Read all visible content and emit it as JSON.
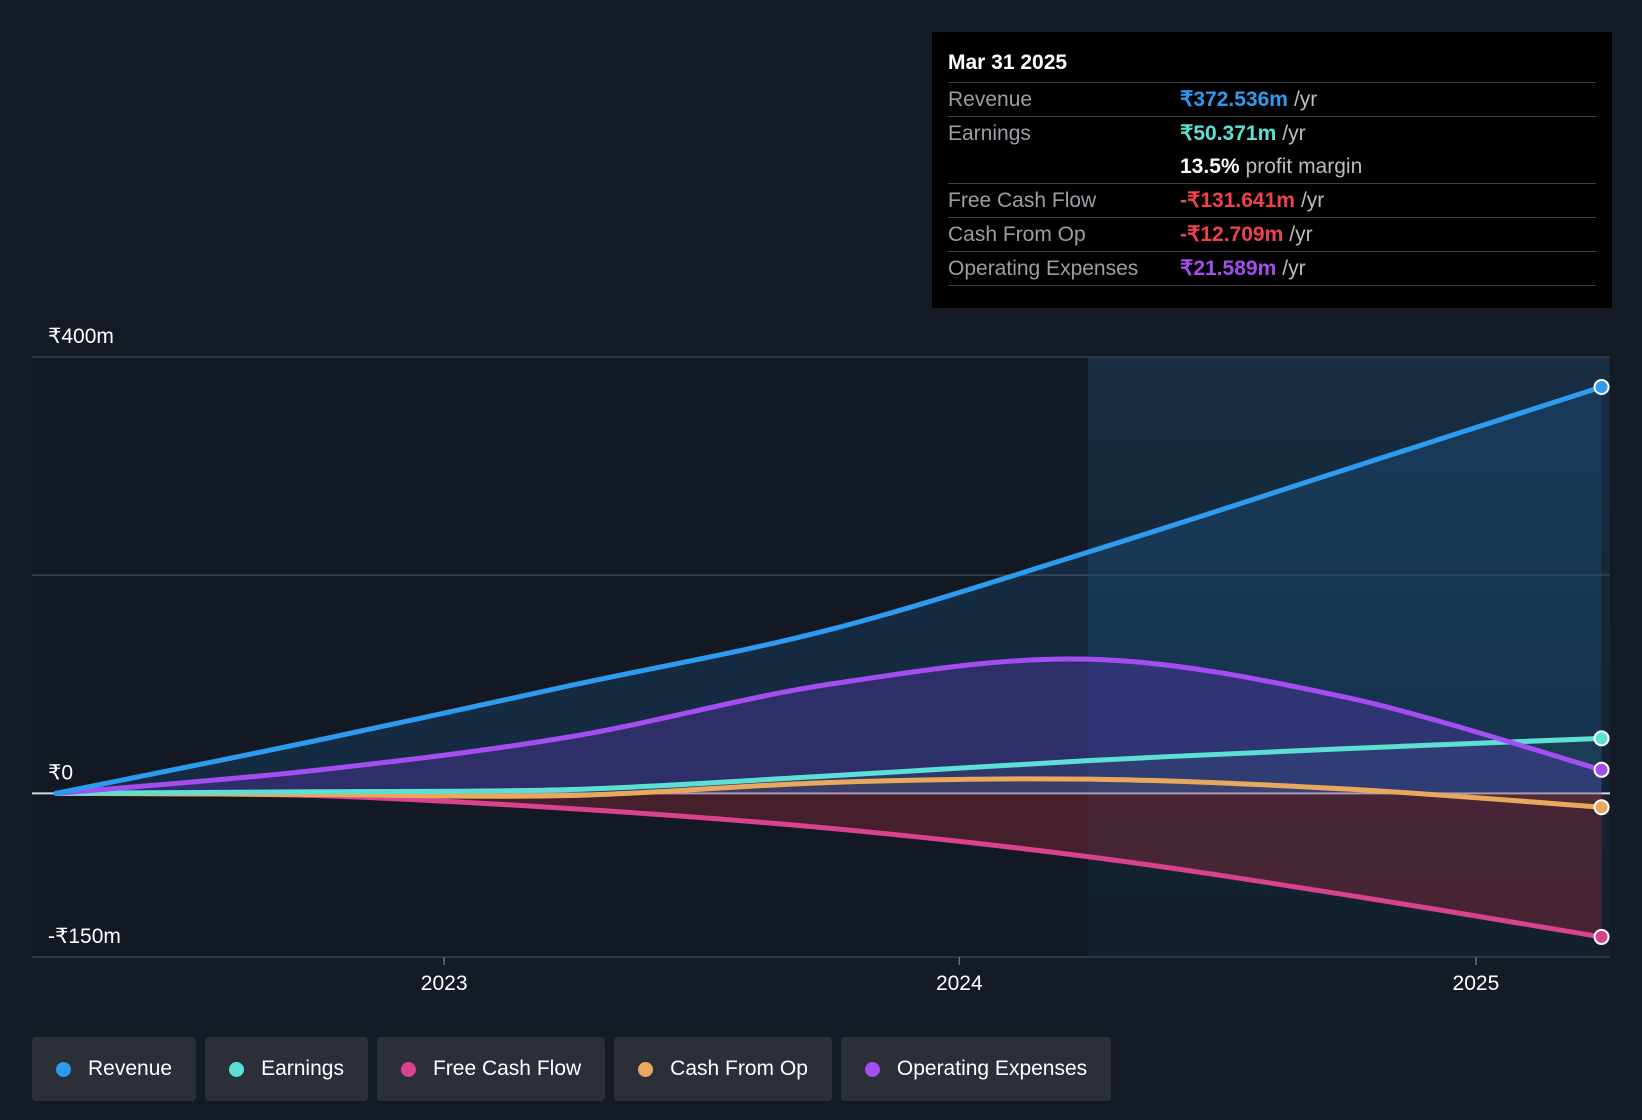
{
  "chart_data": {
    "type": "line",
    "x": [
      "2022-04-01",
      "2022-10-01",
      "2023-04-01",
      "2023-10-01",
      "2024-04-01",
      "2024-10-01",
      "2025-03-31"
    ],
    "series": [
      {
        "name": "Revenue",
        "color": "#2d9bf0",
        "values": [
          0,
          48,
          99,
          150,
          221,
          297,
          372.5
        ]
      },
      {
        "name": "Earnings",
        "color": "#5ce0d5",
        "values": [
          0,
          1.5,
          3.5,
          16,
          30,
          41,
          50.4
        ]
      },
      {
        "name": "Free Cash Flow",
        "color": "#d9428c",
        "values": [
          0,
          -2,
          -14,
          -32,
          -58,
          -93,
          -131.6
        ]
      },
      {
        "name": "Cash From Op",
        "color": "#e8a95c",
        "values": [
          0,
          -1,
          -2,
          10,
          13,
          4,
          -12.7
        ]
      },
      {
        "name": "Operating Expenses",
        "color": "#a44df0",
        "values": [
          0,
          21,
          52,
          100,
          123,
          88,
          21.6
        ]
      }
    ],
    "ylim": [
      -150,
      400
    ],
    "y_tick_labels": [
      {
        "value": 400,
        "label": "₹400m"
      },
      {
        "value": 0,
        "label": "₹0"
      },
      {
        "value": -150,
        "label": "-₹150m"
      }
    ],
    "x_tick_labels": [
      {
        "date": "2023-01-01",
        "label": "2023"
      },
      {
        "date": "2024-01-01",
        "label": "2024"
      },
      {
        "date": "2025-01-01",
        "label": "2025"
      }
    ],
    "highlight_start": "2024-04-01",
    "grid": true
  },
  "tooltip": {
    "date": "Mar 31 2025",
    "rows": [
      {
        "label": "Revenue",
        "value": "₹372.536m",
        "unit": "/yr",
        "color": "#2d9bf0"
      },
      {
        "label": "Earnings",
        "value": "₹50.371m",
        "unit": "/yr",
        "color": "#5ce0d5"
      },
      {
        "label": "",
        "value": "13.5%",
        "unit": "profit margin",
        "color": "#ffffff"
      },
      {
        "label": "Free Cash Flow",
        "value": "-₹131.641m",
        "unit": "/yr",
        "color": "#f0424e"
      },
      {
        "label": "Cash From Op",
        "value": "-₹12.709m",
        "unit": "/yr",
        "color": "#f0424e"
      },
      {
        "label": "Operating Expenses",
        "value": "₹21.589m",
        "unit": "/yr",
        "color": "#a44df0"
      }
    ]
  },
  "legend": [
    {
      "label": "Revenue",
      "color": "#2d9bf0"
    },
    {
      "label": "Earnings",
      "color": "#5ce0d5"
    },
    {
      "label": "Free Cash Flow",
      "color": "#d9428c"
    },
    {
      "label": "Cash From Op",
      "color": "#e8a95c"
    },
    {
      "label": "Operating Expenses",
      "color": "#a44df0"
    }
  ]
}
